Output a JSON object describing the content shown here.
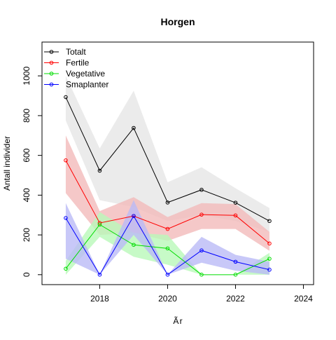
{
  "chart_data": {
    "type": "line",
    "title": "Horgen",
    "xlabel": "Ãr",
    "ylabel": "Antall individer",
    "xlim": [
      2016.3,
      2024.3
    ],
    "ylim": [
      -50,
      1170
    ],
    "xticks": [
      2018,
      2020,
      2022,
      2024
    ],
    "yticks": [
      0,
      200,
      400,
      600,
      800,
      1000
    ],
    "x": [
      2017,
      2018,
      2019,
      2020,
      2021,
      2022,
      2023
    ],
    "legend_position": "top-left",
    "grid": false,
    "series": [
      {
        "name": "Totalt",
        "color": "#000000",
        "band_color": "#e6e6e6",
        "values": [
          893,
          523,
          738,
          363,
          427,
          362,
          270
        ],
        "lower": [
          775,
          375,
          340,
          270,
          300,
          270,
          215
        ],
        "upper": [
          1000,
          635,
          925,
          465,
          540,
          435,
          335
        ]
      },
      {
        "name": "Fertile",
        "color": "#ff0000",
        "band_color": "#f2baba",
        "values": [
          575,
          260,
          295,
          230,
          302,
          298,
          157
        ],
        "lower": [
          410,
          200,
          210,
          170,
          230,
          230,
          120
        ],
        "upper": [
          700,
          320,
          390,
          290,
          360,
          355,
          215
        ]
      },
      {
        "name": "Vegetative",
        "color": "#00dd00",
        "band_color": "#b9f9b9",
        "values": [
          30,
          252,
          150,
          132,
          0,
          0,
          80
        ],
        "lower": [
          0,
          190,
          90,
          50,
          0,
          0,
          0
        ],
        "upper": [
          70,
          315,
          210,
          200,
          0,
          0,
          110
        ]
      },
      {
        "name": "Smaplanter",
        "color": "#0000ff",
        "band_color": "#babaf6",
        "values": [
          285,
          0,
          295,
          0,
          122,
          65,
          25
        ],
        "lower": [
          80,
          0,
          200,
          0,
          60,
          20,
          0
        ],
        "upper": [
          360,
          0,
          375,
          0,
          190,
          100,
          65
        ]
      }
    ]
  }
}
